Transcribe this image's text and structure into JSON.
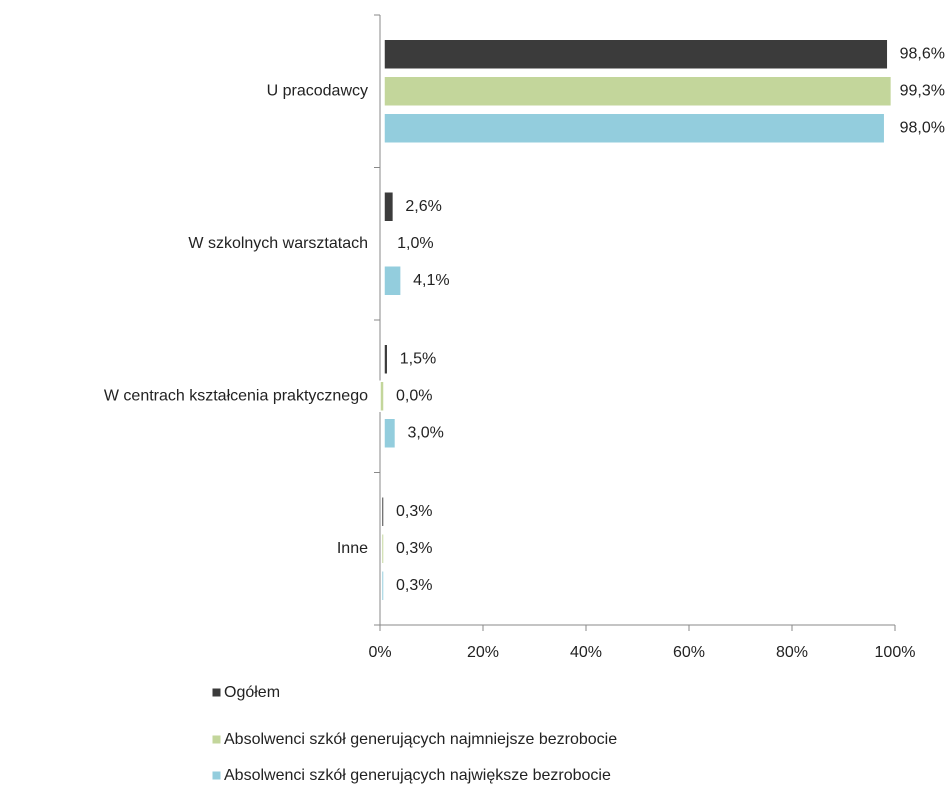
{
  "chart_data": {
    "type": "hbar",
    "categories": [
      "U pracodawcy",
      "W szkolnych warsztatach",
      "W centrach kształcenia praktycznego",
      "Inne"
    ],
    "series": [
      {
        "name": "Ogółem",
        "color": "#3b3b3b",
        "values": [
          98.6,
          2.6,
          1.5,
          0.3
        ],
        "value_labels": [
          "98,6%",
          "2,6%",
          "1,5%",
          "0,3%"
        ]
      },
      {
        "name": "Absolwenci szkół generujących najmniejsze bezrobocie",
        "color": "#c3d69b",
        "values": [
          99.3,
          1.0,
          0.0,
          0.3
        ],
        "value_labels": [
          "99,3%",
          "1,0%",
          "0,0%",
          "0,3%"
        ]
      },
      {
        "name": "Absolwenci  szkół generujących największe bezrobocie",
        "color": "#93cddd",
        "values": [
          98.0,
          4.1,
          3.0,
          0.3
        ],
        "value_labels": [
          "98,0%",
          "4,1%",
          "3,0%",
          "0,3%"
        ]
      }
    ],
    "xlim": [
      0,
      100
    ],
    "xticks": [
      {
        "value": 0,
        "label": "0%"
      },
      {
        "value": 20,
        "label": "20%"
      },
      {
        "value": 40,
        "label": "40%"
      },
      {
        "value": 60,
        "label": "60%"
      },
      {
        "value": 80,
        "label": "80%"
      },
      {
        "value": 100,
        "label": "100%"
      }
    ],
    "legend": "bottom"
  }
}
